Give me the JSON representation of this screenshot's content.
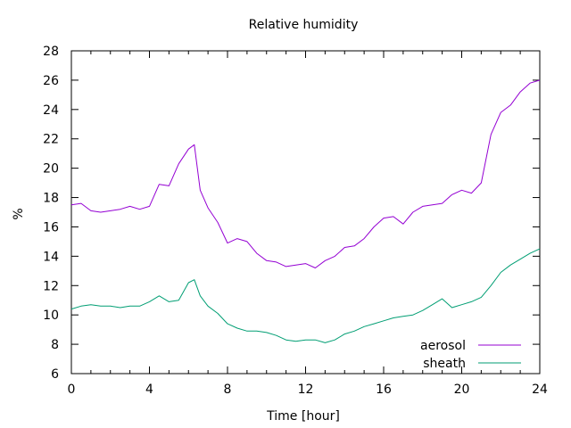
{
  "chart_data": {
    "type": "line",
    "title": "Relative humidity",
    "xlabel": "Time [hour]",
    "ylabel": "%",
    "xlim": [
      0,
      24
    ],
    "ylim": [
      6,
      28
    ],
    "xticks": [
      0,
      4,
      8,
      12,
      16,
      20,
      24
    ],
    "yticks": [
      6,
      8,
      10,
      12,
      14,
      16,
      18,
      20,
      22,
      24,
      26,
      28
    ],
    "grid": false,
    "legend_position": "bottom-right",
    "series": [
      {
        "name": "aerosol",
        "color": "#9400d3",
        "x": [
          0,
          0.5,
          1,
          1.5,
          2,
          2.5,
          3,
          3.5,
          4,
          4.5,
          5,
          5.5,
          6,
          6.3,
          6.6,
          7,
          7.5,
          8,
          8.5,
          9,
          9.5,
          10,
          10.5,
          11,
          11.5,
          12,
          12.5,
          13,
          13.5,
          14,
          14.5,
          15,
          15.5,
          16,
          16.5,
          17,
          17.5,
          18,
          18.5,
          19,
          19.5,
          20,
          20.5,
          21,
          21.5,
          22,
          22.5,
          23,
          23.5,
          24
        ],
        "y": [
          17.5,
          17.6,
          17.1,
          17.0,
          17.1,
          17.2,
          17.4,
          17.2,
          17.4,
          18.9,
          18.8,
          20.3,
          21.3,
          21.6,
          18.5,
          17.3,
          16.3,
          14.9,
          15.2,
          15.0,
          14.2,
          13.7,
          13.6,
          13.3,
          13.4,
          13.5,
          13.2,
          13.7,
          14.0,
          14.6,
          14.7,
          15.2,
          16.0,
          16.6,
          16.7,
          16.2,
          17.0,
          17.4,
          17.5,
          17.6,
          18.2,
          18.5,
          18.3,
          19.0,
          22.3,
          23.8,
          24.3,
          25.2,
          25.8,
          26.0
        ]
      },
      {
        "name": "sheath",
        "color": "#009e73",
        "x": [
          0,
          0.5,
          1,
          1.5,
          2,
          2.5,
          3,
          3.5,
          4,
          4.5,
          5,
          5.5,
          6,
          6.3,
          6.6,
          7,
          7.5,
          8,
          8.5,
          9,
          9.5,
          10,
          10.5,
          11,
          11.5,
          12,
          12.5,
          13,
          13.5,
          14,
          14.5,
          15,
          15.5,
          16,
          16.5,
          17,
          17.5,
          18,
          18.5,
          19,
          19.5,
          20,
          20.5,
          21,
          21.5,
          22,
          22.5,
          23,
          23.5,
          24
        ],
        "y": [
          10.4,
          10.6,
          10.7,
          10.6,
          10.6,
          10.5,
          10.6,
          10.6,
          10.9,
          11.3,
          10.9,
          11.0,
          12.2,
          12.4,
          11.3,
          10.6,
          10.1,
          9.4,
          9.1,
          8.9,
          8.9,
          8.8,
          8.6,
          8.3,
          8.2,
          8.3,
          8.3,
          8.1,
          8.3,
          8.7,
          8.9,
          9.2,
          9.4,
          9.6,
          9.8,
          9.9,
          10.0,
          10.3,
          10.7,
          11.1,
          10.5,
          10.7,
          10.9,
          11.2,
          12.0,
          12.9,
          13.4,
          13.8,
          14.2,
          14.5
        ]
      }
    ]
  }
}
